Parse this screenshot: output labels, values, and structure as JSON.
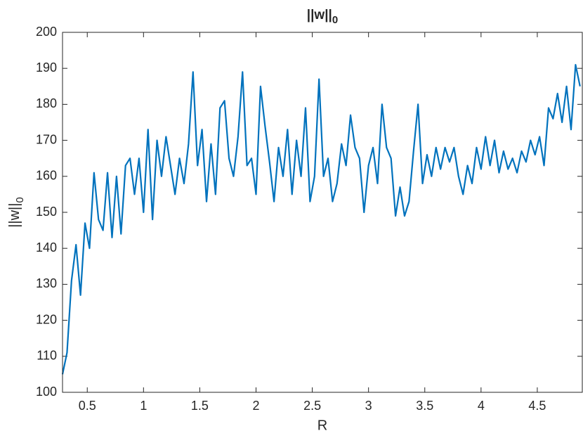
{
  "chart_data": {
    "type": "line",
    "title": "||w||",
    "title_subscript": "0",
    "xlabel": "R",
    "ylabel": "||w||",
    "ylabel_subscript": "0",
    "color": "#0072bd",
    "x": [
      0.28,
      0.32,
      0.36,
      0.4,
      0.44,
      0.48,
      0.52,
      0.56,
      0.6,
      0.64,
      0.68,
      0.72,
      0.76,
      0.8,
      0.84,
      0.88,
      0.92,
      0.96,
      1.0,
      1.04,
      1.08,
      1.12,
      1.16,
      1.2,
      1.24,
      1.28,
      1.32,
      1.36,
      1.4,
      1.44,
      1.48,
      1.52,
      1.56,
      1.6,
      1.64,
      1.68,
      1.72,
      1.76,
      1.8,
      1.84,
      1.88,
      1.92,
      1.96,
      2.0,
      2.04,
      2.08,
      2.12,
      2.16,
      2.2,
      2.24,
      2.28,
      2.32,
      2.36,
      2.4,
      2.44,
      2.48,
      2.52,
      2.56,
      2.6,
      2.64,
      2.68,
      2.72,
      2.76,
      2.8,
      2.84,
      2.88,
      2.92,
      2.96,
      3.0,
      3.04,
      3.08,
      3.12,
      3.16,
      3.2,
      3.24,
      3.28,
      3.32,
      3.36,
      3.4,
      3.44,
      3.48,
      3.52,
      3.56,
      3.6,
      3.64,
      3.68,
      3.72,
      3.76,
      3.8,
      3.84,
      3.88,
      3.92,
      3.96,
      4.0,
      4.04,
      4.08,
      4.12,
      4.16,
      4.2,
      4.24,
      4.28,
      4.32,
      4.36,
      4.4,
      4.44,
      4.48,
      4.52,
      4.56,
      4.6,
      4.64,
      4.68,
      4.72,
      4.76,
      4.8,
      4.84,
      4.88
    ],
    "values": [
      105,
      111,
      131,
      141,
      127,
      147,
      140,
      161,
      148,
      145,
      161,
      143,
      160,
      144,
      163,
      165,
      155,
      165,
      150,
      173,
      148,
      170,
      160,
      171,
      163,
      155,
      165,
      158,
      169,
      189,
      163,
      173,
      153,
      169,
      155,
      179,
      181,
      165,
      160,
      171,
      189,
      163,
      165,
      155,
      185,
      174,
      164,
      153,
      168,
      160,
      173,
      155,
      170,
      160,
      179,
      153,
      160,
      187,
      160,
      165,
      153,
      158,
      169,
      163,
      177,
      168,
      165,
      150,
      163,
      168,
      158,
      180,
      168,
      165,
      149,
      157,
      149,
      153,
      167,
      180,
      158,
      166,
      160,
      168,
      162,
      168,
      164,
      168,
      160,
      155,
      163,
      158,
      168,
      162,
      171,
      163,
      170,
      161,
      167,
      162,
      165,
      161,
      167,
      164,
      170,
      166,
      171,
      163,
      179,
      176,
      183,
      175,
      185,
      173,
      191,
      185
    ],
    "xlim": [
      0.28,
      4.9
    ],
    "xticks": [
      0.5,
      1,
      1.5,
      2,
      2.5,
      3,
      3.5,
      4,
      4.5
    ],
    "ylim": [
      100,
      200
    ],
    "yticks": [
      100,
      110,
      120,
      130,
      140,
      150,
      160,
      170,
      180,
      190,
      200
    ],
    "grid": false
  }
}
